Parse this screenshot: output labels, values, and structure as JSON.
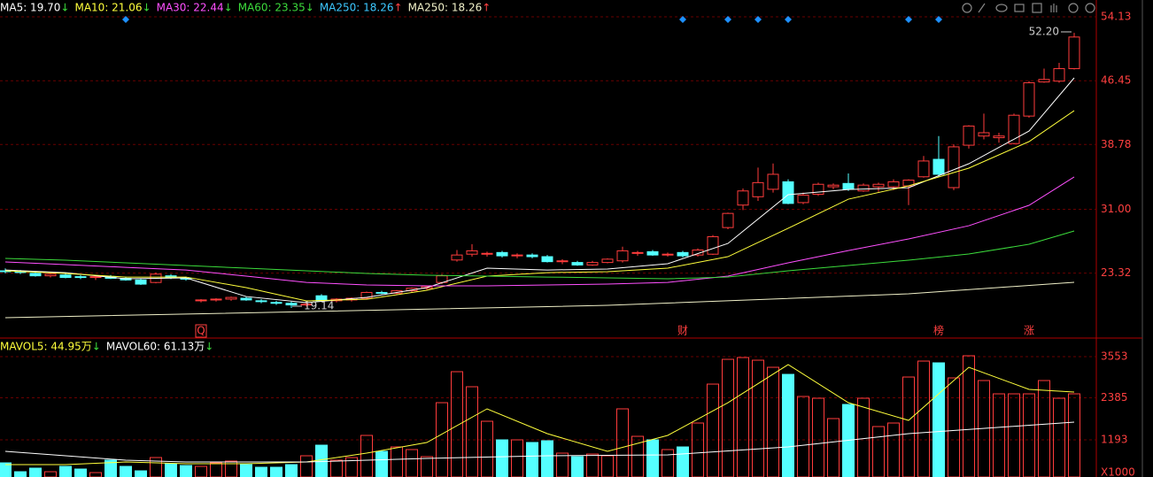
{
  "chart_data": [
    {
      "type": "candlestick",
      "up_color": "#ff3c3c",
      "down_color": "#54ffff",
      "ylim": [
        15.73,
        56.15
      ],
      "yticks": [
        23.32,
        {
          "value": 31,
          "label": "31.00"
        },
        38.78,
        46.45,
        54.13
      ],
      "grid": true,
      "open": [
        23.6,
        23.5,
        23.3,
        23.0,
        23.1,
        22.9,
        22.8,
        22.9,
        22.7,
        22.5,
        22.2,
        23.0,
        22.7,
        20.0,
        20.1,
        20.2,
        20.3,
        20.0,
        19.8,
        19.7,
        19.5,
        20.6,
        20.0,
        20.1,
        20.3,
        21.0,
        20.9,
        21.2,
        21.5,
        22.2,
        24.9,
        25.6,
        25.6,
        25.8,
        25.4,
        25.5,
        25.3,
        24.7,
        24.6,
        24.3,
        24.6,
        24.8,
        25.7,
        25.9,
        25.5,
        25.8,
        25.5,
        25.6,
        28.8,
        31.5,
        32.5,
        33.4,
        34.3,
        31.8,
        32.8,
        33.7,
        34.1,
        33.2,
        33.7,
        33.7,
        33.8,
        34.9,
        37.0,
        33.6,
        38.7,
        39.8,
        39.6,
        38.9,
        42.2,
        46.3,
        46.4,
        47.9
      ],
      "high": [
        23.9,
        23.7,
        23.5,
        23.3,
        23.3,
        23.1,
        23.0,
        23.1,
        22.9,
        22.7,
        23.4,
        23.2,
        22.9,
        20.2,
        20.3,
        20.5,
        20.5,
        20.2,
        20.0,
        19.9,
        19.8,
        20.8,
        20.3,
        20.4,
        21.1,
        21.2,
        21.3,
        21.6,
        21.8,
        23.2,
        26.1,
        26.8,
        25.9,
        26.0,
        25.7,
        25.7,
        25.5,
        25.0,
        24.8,
        24.8,
        25.1,
        26.5,
        26.0,
        26.1,
        25.8,
        26.0,
        26.3,
        27.9,
        30.6,
        33.5,
        36.0,
        36.5,
        34.6,
        33.0,
        34.2,
        34.1,
        35.3,
        34.1,
        34.2,
        34.6,
        34.6,
        37.4,
        39.8,
        38.8,
        41.1,
        42.5,
        40.2,
        42.5,
        46.4,
        47.9,
        48.6,
        52.2
      ],
      "low": [
        23.3,
        23.2,
        22.9,
        22.8,
        22.7,
        22.6,
        22.5,
        22.6,
        22.4,
        21.9,
        22.1,
        22.6,
        22.4,
        19.8,
        19.9,
        20.0,
        20.0,
        19.7,
        19.5,
        19.14,
        19.3,
        19.9,
        19.8,
        19.9,
        20.2,
        20.8,
        20.8,
        21.0,
        21.3,
        22.0,
        24.7,
        25.3,
        25.3,
        25.2,
        25.1,
        25.1,
        24.6,
        24.4,
        24.2,
        24.2,
        24.5,
        24.6,
        25.4,
        25.4,
        25.3,
        25.2,
        25.3,
        25.5,
        28.6,
        30.9,
        32.0,
        33.0,
        31.6,
        31.6,
        32.6,
        33.4,
        33.2,
        33.1,
        33.1,
        33.3,
        31.5,
        34.8,
        34.9,
        33.3,
        38.3,
        39.4,
        39.0,
        38.8,
        42.0,
        46.2,
        46.2,
        47.8
      ],
      "close": [
        23.5,
        23.4,
        23.0,
        23.2,
        22.8,
        22.8,
        22.9,
        22.7,
        22.5,
        22.0,
        23.2,
        22.8,
        22.6,
        20.1,
        20.2,
        20.4,
        20.1,
        19.9,
        19.7,
        19.5,
        19.6,
        20.0,
        20.2,
        20.3,
        21.0,
        20.9,
        21.2,
        21.5,
        21.7,
        23.0,
        25.5,
        26.0,
        25.7,
        25.4,
        25.5,
        25.3,
        24.7,
        24.8,
        24.3,
        24.6,
        25.0,
        26.0,
        25.8,
        25.5,
        25.6,
        25.4,
        26.1,
        27.7,
        30.5,
        33.2,
        34.2,
        35.2,
        31.7,
        32.7,
        34.0,
        33.9,
        33.4,
        33.9,
        34.0,
        34.3,
        34.5,
        36.8,
        35.2,
        38.5,
        41.0,
        40.2,
        39.8,
        42.3,
        46.2,
        46.6,
        47.9,
        51.7
      ],
      "series": [
        {
          "name": "MA5: 19.70",
          "arrow": "↓",
          "color": "#ffffff",
          "x": [
            0,
            4,
            8,
            12,
            16,
            20,
            24,
            28,
            32,
            36,
            40,
            44,
            48,
            52,
            56,
            60,
            64,
            68,
            71
          ],
          "values": [
            23.7,
            23.38,
            22.64,
            22.75,
            20.51,
            19.77,
            20.41,
            21.58,
            23.92,
            23.7,
            23.81,
            24.45,
            26.89,
            32.75,
            33.38,
            33.59,
            36.47,
            40.4,
            46.79
          ]
        },
        {
          "name": "MA10: 21.06",
          "arrow": "↓",
          "color": "#ffff3c",
          "x": [
            0,
            4,
            8,
            12,
            16,
            20,
            24,
            28,
            32,
            36,
            40,
            44,
            48,
            52,
            56,
            60,
            64,
            68,
            71
          ],
          "values": [
            23.6,
            23.28,
            22.85,
            22.85,
            21.58,
            19.98,
            20.19,
            21.26,
            22.96,
            23.38,
            23.49,
            23.92,
            25.3,
            28.71,
            32.21,
            33.81,
            35.94,
            39.13,
            42.85
          ]
        },
        {
          "name": "MA30: 22.44",
          "arrow": "↓",
          "color": "#ff50ff",
          "x": [
            0,
            4,
            8,
            12,
            16,
            20,
            24,
            28,
            32,
            36,
            40,
            44,
            48,
            52,
            56,
            60,
            64,
            68,
            71
          ],
          "values": [
            24.66,
            24.34,
            24.02,
            23.7,
            22.96,
            22.21,
            21.9,
            21.79,
            21.79,
            21.9,
            22.0,
            22.21,
            22.96,
            24.56,
            26.04,
            27.43,
            29.02,
            31.47,
            34.88
          ]
        },
        {
          "name": "MA60: 23.35",
          "arrow": "↓",
          "color": "#3cdc3c",
          "x": [
            0,
            4,
            8,
            12,
            16,
            20,
            24,
            28,
            32,
            36,
            40,
            44,
            48,
            52,
            56,
            60,
            64,
            68,
            71
          ],
          "values": [
            25.09,
            24.88,
            24.56,
            24.24,
            23.92,
            23.6,
            23.28,
            23.07,
            22.96,
            22.85,
            22.75,
            22.64,
            22.85,
            23.6,
            24.24,
            24.88,
            25.62,
            26.79,
            28.39
          ]
        },
        {
          "name": "MA250: 18.26",
          "arrow": "↑",
          "color": "#3cc8ff"
        },
        {
          "name": "MA250: 18.26",
          "arrow": "↑",
          "color": "#f0f0c8",
          "x": [
            0,
            20,
            40,
            60,
            71
          ],
          "values": [
            17.96,
            18.7,
            19.45,
            20.83,
            22.22
          ]
        }
      ],
      "annotations": [
        {
          "text": "19.14"
        },
        {
          "text": "52.20"
        }
      ],
      "event_labels": [
        "Q",
        "财",
        "榜",
        "涨"
      ]
    },
    {
      "type": "bar",
      "ylim": [
        139,
        4055
      ],
      "yticks": [
        1193,
        2385,
        3553
      ],
      "grid": true,
      "unit_label": "X1000",
      "values": [
        540,
        289,
        390,
        289,
        440,
        365,
        264,
        616,
        440,
        314,
        691,
        515,
        465,
        440,
        540,
        591,
        490,
        415,
        415,
        490,
        741,
        1042,
        616,
        691,
        1319,
        867,
        992,
        917,
        716,
        2247,
        3126,
        2699,
        1720,
        1193,
        1193,
        1118,
        1168,
        816,
        716,
        791,
        741,
        2072,
        1293,
        1193,
        917,
        992,
        1670,
        2774,
        3477,
        3527,
        3452,
        3251,
        3050,
        2423,
        2373,
        1796,
        2197,
        2373,
        1570,
        1670,
        2975,
        3427,
        3377,
        2950,
        3578,
        2875,
        2498,
        2498,
        2498,
        2875,
        2373,
        2498
      ],
      "series": [
        {
          "name": "MAVOL5: 44.95万",
          "arrow": "↓",
          "color": "#ffff3c",
          "x": [
            0,
            4,
            8,
            12,
            16,
            20,
            24,
            28,
            32,
            36,
            40,
            44,
            48,
            52,
            56,
            60,
            64,
            68,
            71
          ],
          "values": [
            490,
            490,
            565,
            515,
            515,
            565,
            816,
            1118,
            2072,
            1369,
            867,
            1319,
            2247,
            3327,
            2247,
            1745,
            3251,
            2624,
            2549
          ]
        },
        {
          "name": "MAVOL60: 61.13万",
          "arrow": "↓",
          "color": "#ffffff",
          "x": [
            0,
            4,
            8,
            12,
            20,
            28,
            36,
            44,
            52,
            60,
            71
          ],
          "values": [
            867,
            741,
            616,
            565,
            565,
            666,
            741,
            766,
            992,
            1369,
            1695
          ]
        }
      ]
    }
  ]
}
